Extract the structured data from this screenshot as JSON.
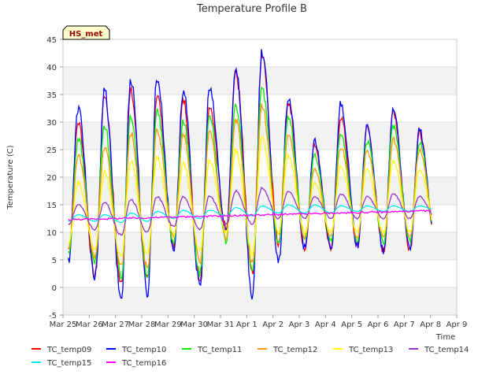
{
  "chart_data": {
    "type": "line",
    "title": "Temperature Profile B",
    "xlabel": "Time",
    "ylabel": "Temperature (C)",
    "ylim": [
      -5,
      45
    ],
    "yticks": [
      -5,
      0,
      5,
      10,
      15,
      20,
      25,
      30,
      35,
      40,
      45
    ],
    "xlim": [
      "2024-03-25",
      "2024-04-09"
    ],
    "xticks": [
      "Mar 25",
      "Mar 26",
      "Mar 27",
      "Mar 28",
      "Mar 29",
      "Mar 30",
      "Mar 31",
      "Apr 1",
      "Apr 2",
      "Apr 3",
      "Apr 4",
      "Apr 5",
      "Apr 6",
      "Apr 7",
      "Apr 8",
      "Apr 9"
    ],
    "grid": true,
    "banded_background": true,
    "legend_position": "bottom",
    "badge": "HS_met",
    "x": [
      "2024-03-25",
      "2024-03-26",
      "2024-03-27",
      "2024-03-28",
      "2024-03-29",
      "2024-03-30",
      "2024-03-31",
      "2024-04-01",
      "2024-04-02",
      "2024-04-03",
      "2024-04-04",
      "2024-04-05",
      "2024-04-06",
      "2024-04-07",
      "2024-04-08"
    ],
    "daily_peak_day_fraction": 0.58,
    "daily_min_day_fraction": 0.22,
    "series": [
      {
        "name": "TC_temp09",
        "color": "#ff0000",
        "daily_min": [
          7.0,
          2.0,
          0.5,
          1.0,
          7.5,
          1.5,
          11.0,
          2.0,
          8.0,
          7.0,
          7.0,
          7.5,
          6.5,
          7.0,
          7.5
        ],
        "daily_max": [
          30.0,
          35.0,
          35.5,
          35.0,
          34.0,
          33.0,
          39.0,
          42.0,
          33.5,
          26.0,
          31.0,
          29.0,
          32.0,
          28.0,
          27.5
        ]
      },
      {
        "name": "TC_temp10",
        "color": "#0000ff",
        "daily_min": [
          5.0,
          1.5,
          -2.0,
          -1.0,
          7.0,
          0.0,
          10.0,
          -1.5,
          4.5,
          7.0,
          7.0,
          7.5,
          6.5,
          7.0,
          7.0
        ],
        "daily_max": [
          32.5,
          35.5,
          38.0,
          38.0,
          35.5,
          36.0,
          40.0,
          43.0,
          34.5,
          26.5,
          33.5,
          29.0,
          32.5,
          28.5,
          26.5
        ]
      },
      {
        "name": "TC_temp11",
        "color": "#00ee00",
        "daily_min": [
          6.0,
          4.5,
          2.0,
          2.0,
          8.0,
          2.5,
          8.0,
          3.0,
          8.0,
          8.5,
          8.5,
          8.5,
          8.0,
          8.5,
          9.0
        ],
        "daily_max": [
          27.0,
          29.5,
          31.5,
          32.0,
          30.5,
          31.0,
          33.5,
          36.0,
          31.0,
          24.0,
          28.0,
          26.5,
          29.5,
          26.5,
          26.5
        ]
      },
      {
        "name": "TC_temp12",
        "color": "#ff9900",
        "daily_min": [
          7.5,
          5.5,
          3.5,
          3.5,
          9.0,
          4.5,
          9.0,
          4.5,
          9.0,
          9.0,
          9.0,
          9.0,
          9.0,
          9.0,
          9.5
        ],
        "daily_max": [
          24.0,
          25.5,
          28.0,
          28.5,
          27.5,
          28.0,
          30.5,
          33.0,
          28.0,
          21.5,
          25.5,
          25.0,
          27.0,
          25.0,
          24.5
        ]
      },
      {
        "name": "TC_temp13",
        "color": "#ffff00",
        "daily_min": [
          8.0,
          7.0,
          5.5,
          6.0,
          9.5,
          6.5,
          10.0,
          6.0,
          10.0,
          10.0,
          10.0,
          10.0,
          10.0,
          10.0,
          10.5
        ],
        "daily_max": [
          19.0,
          21.0,
          23.0,
          23.5,
          22.5,
          23.0,
          25.0,
          27.0,
          24.0,
          19.0,
          22.0,
          21.5,
          23.0,
          21.5,
          21.0
        ]
      },
      {
        "name": "TC_temp14",
        "color": "#9933cc",
        "daily_min": [
          11.5,
          10.5,
          9.5,
          10.0,
          11.0,
          10.5,
          11.5,
          11.5,
          12.5,
          12.5,
          12.5,
          12.5,
          12.5,
          12.5,
          12.5
        ],
        "daily_max": [
          15.0,
          15.5,
          16.0,
          16.5,
          16.5,
          16.5,
          17.5,
          18.0,
          17.5,
          16.5,
          17.0,
          16.5,
          17.0,
          16.5,
          16.0
        ]
      },
      {
        "name": "TC_temp15",
        "color": "#00eeee",
        "daily_min": [
          12.0,
          12.0,
          11.8,
          12.0,
          12.5,
          12.5,
          13.0,
          13.0,
          13.5,
          13.5,
          13.5,
          13.8,
          13.8,
          13.8,
          14.0
        ],
        "daily_max": [
          13.2,
          13.2,
          13.5,
          13.8,
          14.0,
          14.0,
          14.5,
          14.8,
          15.0,
          15.0,
          14.8,
          14.8,
          14.8,
          14.8,
          14.5
        ]
      },
      {
        "name": "TC_temp16",
        "color": "#ff00ff",
        "start_value": 12.3,
        "end_value": 13.9
      }
    ]
  }
}
